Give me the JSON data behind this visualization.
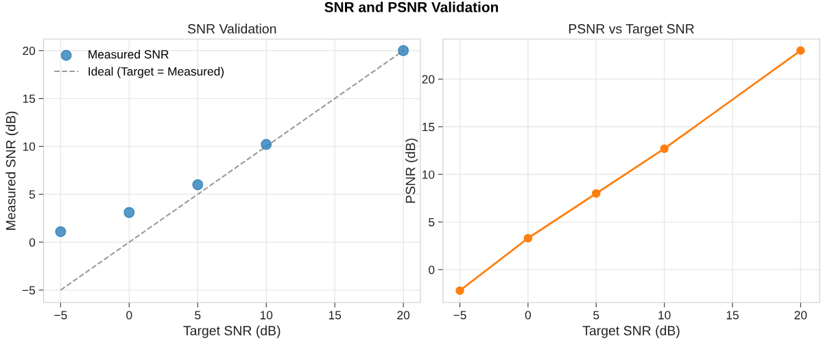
{
  "chart_data": [
    {
      "type": "scatter",
      "title": "SNR Validation",
      "annotations": [
        "SNR and PSNR Validation"
      ],
      "xlabel": "Target SNR (dB)",
      "ylabel": "Measured SNR (dB)",
      "xlim": [
        -6.24,
        21.24
      ],
      "ylim": [
        -6.3,
        21.2
      ],
      "xticks": [
        {
          "value": -5,
          "label": "−5"
        },
        0,
        5,
        10,
        15,
        20
      ],
      "yticks": [
        {
          "value": -5,
          "label": "−5"
        },
        0,
        5,
        10,
        15,
        20
      ],
      "grid": true,
      "legend": "top left",
      "series": [
        {
          "name": "Measured SNR",
          "color": "#1f77b4",
          "marker": "circle",
          "x": [
            -5,
            0,
            5,
            10,
            20
          ],
          "values": [
            1.1,
            3.1,
            6.0,
            10.2,
            20.0
          ]
        },
        {
          "name": "Ideal (Target = Measured)",
          "type": "line",
          "color": "#999999",
          "line_style": "dashed",
          "marker": "none",
          "x": [
            -5,
            20
          ],
          "values": [
            -5,
            20
          ]
        }
      ]
    },
    {
      "type": "line",
      "title": "PSNR vs Target SNR",
      "xlabel": "Target SNR (dB)",
      "ylabel": "PSNR (dB)",
      "xlim": [
        -6.24,
        21.4
      ],
      "ylim": [
        -3.45,
        24.2
      ],
      "xticks": [
        {
          "value": -5,
          "label": "−5"
        },
        0,
        5,
        10,
        15,
        20
      ],
      "yticks": [
        0,
        5,
        10,
        15,
        20
      ],
      "grid": true,
      "marker": "circle",
      "line_style": "solid",
      "series": [
        {
          "color": "#ff7f0e",
          "x": [
            -5,
            0,
            5,
            10,
            20
          ],
          "values": [
            -2.2,
            3.3,
            8.0,
            12.7,
            23.0
          ]
        }
      ]
    }
  ]
}
